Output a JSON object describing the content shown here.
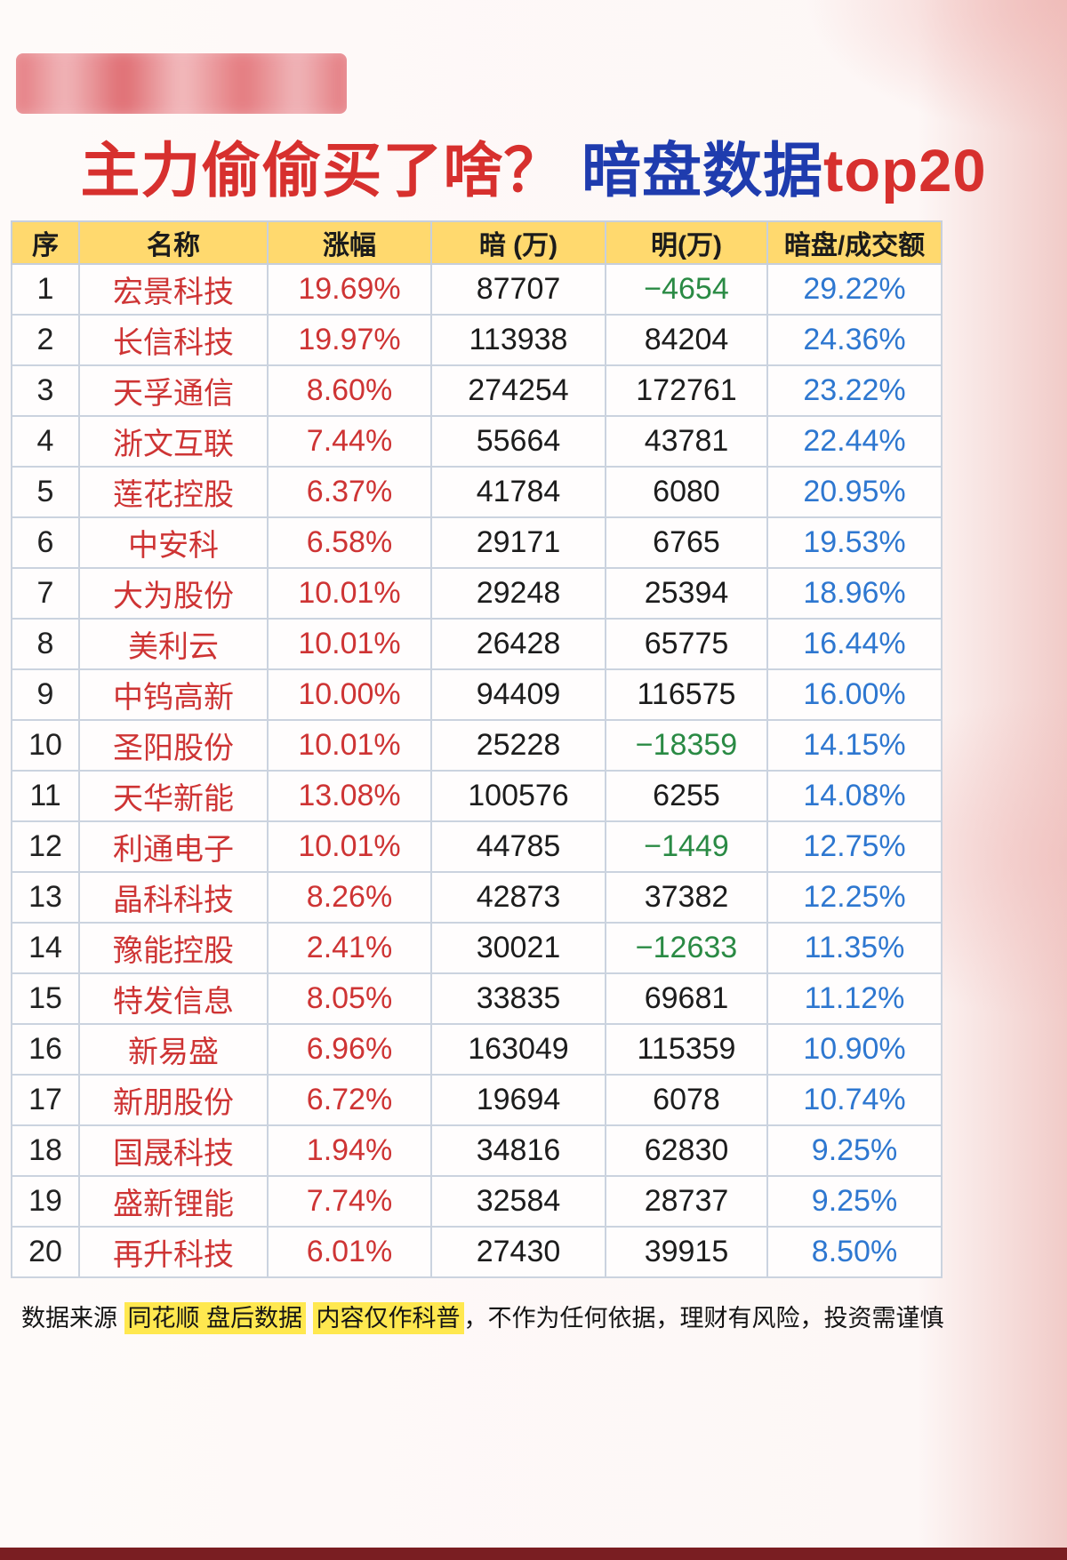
{
  "header": {
    "title_part1": "主力偷偷买了啥？",
    "title_part2": "暗盘数据",
    "title_part3": "top20"
  },
  "chart_data": {
    "type": "table",
    "title": "主力偷偷买了啥？暗盘数据top20",
    "columns": [
      "序",
      "名称",
      "涨幅",
      "暗 (万)",
      "明(万)",
      "暗盘/成交额"
    ],
    "rows": [
      {
        "rank": "1",
        "name": "宏景科技",
        "change": "19.69%",
        "dark": "87707",
        "light": "−4654",
        "ratio": "29.22%"
      },
      {
        "rank": "2",
        "name": "长信科技",
        "change": "19.97%",
        "dark": "113938",
        "light": "84204",
        "ratio": "24.36%"
      },
      {
        "rank": "3",
        "name": "天孚通信",
        "change": "8.60%",
        "dark": "274254",
        "light": "172761",
        "ratio": "23.22%"
      },
      {
        "rank": "4",
        "name": "浙文互联",
        "change": "7.44%",
        "dark": "55664",
        "light": "43781",
        "ratio": "22.44%"
      },
      {
        "rank": "5",
        "name": "莲花控股",
        "change": "6.37%",
        "dark": "41784",
        "light": "6080",
        "ratio": "20.95%"
      },
      {
        "rank": "6",
        "name": "中安科",
        "change": "6.58%",
        "dark": "29171",
        "light": "6765",
        "ratio": "19.53%"
      },
      {
        "rank": "7",
        "name": "大为股份",
        "change": "10.01%",
        "dark": "29248",
        "light": "25394",
        "ratio": "18.96%"
      },
      {
        "rank": "8",
        "name": "美利云",
        "change": "10.01%",
        "dark": "26428",
        "light": "65775",
        "ratio": "16.44%"
      },
      {
        "rank": "9",
        "name": "中钨高新",
        "change": "10.00%",
        "dark": "94409",
        "light": "116575",
        "ratio": "16.00%"
      },
      {
        "rank": "10",
        "name": "圣阳股份",
        "change": "10.01%",
        "dark": "25228",
        "light": "−18359",
        "ratio": "14.15%"
      },
      {
        "rank": "11",
        "name": "天华新能",
        "change": "13.08%",
        "dark": "100576",
        "light": "6255",
        "ratio": "14.08%"
      },
      {
        "rank": "12",
        "name": "利通电子",
        "change": "10.01%",
        "dark": "44785",
        "light": "−1449",
        "ratio": "12.75%"
      },
      {
        "rank": "13",
        "name": "晶科科技",
        "change": "8.26%",
        "dark": "42873",
        "light": "37382",
        "ratio": "12.25%"
      },
      {
        "rank": "14",
        "name": "豫能控股",
        "change": "2.41%",
        "dark": "30021",
        "light": "−12633",
        "ratio": "11.35%"
      },
      {
        "rank": "15",
        "name": "特发信息",
        "change": "8.05%",
        "dark": "33835",
        "light": "69681",
        "ratio": "11.12%"
      },
      {
        "rank": "16",
        "name": "新易盛",
        "change": "6.96%",
        "dark": "163049",
        "light": "115359",
        "ratio": "10.90%"
      },
      {
        "rank": "17",
        "name": "新朋股份",
        "change": "6.72%",
        "dark": "19694",
        "light": "6078",
        "ratio": "10.74%"
      },
      {
        "rank": "18",
        "name": "国晟科技",
        "change": "1.94%",
        "dark": "34816",
        "light": "62830",
        "ratio": "9.25%"
      },
      {
        "rank": "19",
        "name": "盛新锂能",
        "change": "7.74%",
        "dark": "32584",
        "light": "28737",
        "ratio": "9.25%"
      },
      {
        "rank": "20",
        "name": "再升科技",
        "change": "6.01%",
        "dark": "27430",
        "light": "39915",
        "ratio": "8.50%"
      }
    ]
  },
  "footer": {
    "prefix": "数据来源 ",
    "highlight1": "同花顺 盘后数据",
    "highlight2": "内容仅作科普",
    "suffix": "，不作为任何依据，理财有风险，投资需谨慎"
  },
  "colors": {
    "title_red": "#d7302e",
    "title_blue": "#1f3cae",
    "header_bg": "#ffd96e",
    "name_red": "#ce3434",
    "value_blue": "#2e77d0",
    "negative_green": "#2a8a44",
    "highlight_yellow": "#ffe84f",
    "bottom_bar": "#7a1e22"
  }
}
